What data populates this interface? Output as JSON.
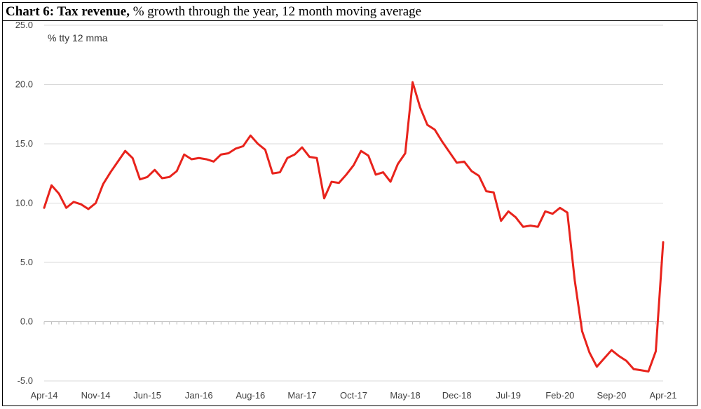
{
  "title_bold": "Chart 6: Tax revenue,",
  "title_rest": " % growth through the year, 12 month moving average",
  "chart_data": {
    "type": "line",
    "unit_label": "% tty 12 mma",
    "ylim": [
      -5,
      25
    ],
    "yticks": [
      "25.0",
      "20.0",
      "15.0",
      "10.0",
      "5.0",
      "0.0",
      "-5.0"
    ],
    "ytick_values": [
      25,
      20,
      15,
      10,
      5,
      0,
      -5
    ],
    "xtick_labels": [
      "Apr-14",
      "Nov-14",
      "Jun-15",
      "Jan-16",
      "Aug-16",
      "Mar-17",
      "Oct-17",
      "May-18",
      "Dec-18",
      "Jul-19",
      "Feb-20",
      "Sep-20",
      "Apr-21"
    ],
    "xtick_index": [
      0,
      7,
      14,
      21,
      28,
      35,
      42,
      49,
      56,
      63,
      70,
      77,
      84
    ],
    "grid": true,
    "color": "#e8231c",
    "series": [
      {
        "values": [
          9.6,
          11.5,
          10.8,
          9.6,
          10.1,
          9.9,
          9.5,
          10.0,
          11.6,
          12.6,
          13.5,
          14.4,
          13.8,
          12.0,
          12.2,
          12.8,
          12.1,
          12.2,
          12.7,
          14.1,
          13.7,
          13.8,
          13.7,
          13.5,
          14.1,
          14.2,
          14.6,
          14.8,
          15.7,
          15.0,
          14.5,
          12.5,
          12.6,
          13.8,
          14.1,
          14.7,
          13.9,
          13.8,
          10.4,
          11.8,
          11.7,
          12.4,
          13.2,
          14.4,
          14.0,
          12.4,
          12.6,
          11.8,
          13.3,
          14.2,
          20.2,
          18.1,
          16.6,
          16.2,
          15.2,
          14.3,
          13.4,
          13.5,
          12.7,
          12.3,
          11.0,
          10.9,
          8.5,
          9.3,
          8.8,
          8.0,
          8.1,
          8.0,
          9.3,
          9.1,
          9.6,
          9.2,
          3.5,
          -0.8,
          -2.6,
          -3.8,
          -3.1,
          -2.4,
          -2.9,
          -3.3,
          -4.0,
          -4.1,
          -4.2,
          -2.5,
          6.7
        ]
      }
    ]
  }
}
